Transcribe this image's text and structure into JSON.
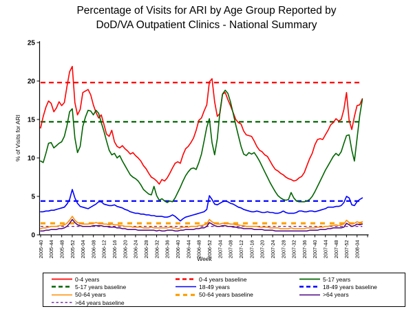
{
  "title": {
    "line1": "Percentage of Visits for ARI by Age Group Reported by",
    "line2": "DoD/VA Outpatient Clinics - National Summary"
  },
  "axes": {
    "y_title": "% of Visits for ARI",
    "x_title": "Week",
    "y_ticks": [
      0,
      5,
      10,
      15,
      20,
      25
    ]
  },
  "legend": {
    "items": [
      {
        "label": "0-4 years",
        "color": "#ff0000",
        "width": 1.8,
        "dash": ""
      },
      {
        "label": "0-4 years baseline",
        "color": "#ff0000",
        "width": 2.4,
        "dash": "6 4"
      },
      {
        "label": "5-17 years",
        "color": "#006400",
        "width": 1.8,
        "dash": ""
      },
      {
        "label": "5-17 years baseline",
        "color": "#006400",
        "width": 2.4,
        "dash": "6 4"
      },
      {
        "label": "18-49 years",
        "color": "#0000ff",
        "width": 1.6,
        "dash": ""
      },
      {
        "label": "18-49 years baseline",
        "color": "#0000ff",
        "width": 2.4,
        "dash": "6 4"
      },
      {
        "label": "50-64 years",
        "color": "#ff8c00",
        "width": 1.6,
        "dash": ""
      },
      {
        "label": "50-64 years baseline",
        "color": "#ffa000",
        "width": 3.2,
        "dash": "6 5"
      },
      {
        "label": ">64 years",
        "color": "#4b0082",
        "width": 1.5,
        "dash": ""
      },
      {
        "label": ">64 years baseline",
        "color": "#7030a0",
        "width": 1.4,
        "dash": "3.5 3"
      }
    ]
  },
  "chart_data": {
    "type": "line",
    "title": "Percentage of Visits for ARI by Age Group Reported by DoD/VA Outpatient Clinics - National Summary",
    "xlabel": "Week",
    "ylabel": "% of Visits for ARI",
    "ylim": [
      0,
      25
    ],
    "x_start": "2005-40",
    "x_end": "2008-06",
    "x_step": "1 week",
    "x_tick_labels": [
      "2005-40",
      "2005-44",
      "2005-48",
      "2005-52",
      "2006-04",
      "2006-08",
      "2006-12",
      "2006-16",
      "2006-20",
      "2006-24",
      "2006-28",
      "2006-32",
      "2006-36",
      "2006-40",
      "2006-44",
      "2006-48",
      "2006-52",
      "2007-04",
      "2007-08",
      "2007-12",
      "2007-16",
      "2007-20",
      "2007-24",
      "2007-28",
      "2007-32",
      "2007-36",
      "2007-40",
      "2007-44",
      "2007-48",
      "2007-52",
      "2008-04"
    ],
    "grid": false,
    "legend_position": "bottom",
    "series": [
      {
        "name": "0-4 years",
        "color": "#ff0000",
        "width": 1.6,
        "values": [
          13.9,
          15.4,
          16.6,
          17.4,
          17.1,
          16.0,
          16.5,
          17.3,
          16.8,
          17.2,
          19.3,
          21.2,
          21.9,
          17.2,
          15.6,
          16.3,
          18.5,
          18.7,
          18.9,
          18.2,
          16.9,
          15.9,
          15.2,
          15.6,
          14.4,
          13.1,
          12.8,
          13.6,
          12.1,
          11.5,
          11.3,
          11.6,
          11.2,
          10.9,
          10.5,
          10.7,
          10.3,
          10.0,
          9.6,
          9.0,
          8.6,
          8.0,
          7.5,
          7.3,
          7.0,
          6.6,
          7.2,
          7.0,
          7.4,
          8.0,
          8.7,
          9.3,
          9.5,
          9.3,
          10.4,
          11.2,
          11.5,
          12.0,
          12.6,
          13.6,
          14.9,
          15.2,
          16.1,
          16.9,
          19.9,
          20.3,
          17.3,
          15.4,
          15.8,
          18.3,
          18.5,
          17.6,
          16.8,
          15.9,
          15.0,
          14.6,
          14.4,
          13.5,
          13.0,
          12.9,
          12.8,
          12.2,
          11.5,
          11.0,
          10.8,
          10.4,
          10.2,
          9.6,
          9.0,
          8.5,
          8.3,
          8.0,
          7.8,
          7.5,
          7.3,
          7.2,
          7.0,
          7.1,
          7.4,
          7.6,
          8.1,
          9.0,
          9.9,
          10.6,
          11.7,
          12.4,
          12.5,
          12.4,
          13.0,
          13.6,
          14.3,
          14.6,
          15.1,
          14.8,
          15.0,
          16.3,
          18.5,
          14.9,
          13.7,
          15.4,
          16.8,
          16.9,
          17.7
        ]
      },
      {
        "name": "5-17 years",
        "color": "#006400",
        "width": 1.6,
        "values": [
          9.6,
          9.4,
          10.6,
          11.9,
          12.0,
          11.3,
          11.6,
          11.9,
          12.1,
          12.8,
          14.2,
          16.0,
          16.4,
          12.6,
          10.7,
          11.5,
          14.1,
          15.3,
          16.2,
          16.1,
          15.6,
          16.2,
          15.8,
          14.6,
          13.5,
          12.2,
          11.0,
          10.4,
          10.6,
          10.0,
          10.3,
          9.6,
          9.0,
          8.4,
          7.8,
          7.5,
          7.3,
          7.0,
          6.5,
          5.9,
          5.6,
          5.3,
          5.2,
          6.3,
          5.1,
          4.5,
          4.7,
          4.4,
          4.2,
          4.4,
          4.3,
          4.8,
          5.5,
          6.2,
          7.0,
          7.7,
          8.2,
          8.6,
          8.7,
          8.5,
          9.4,
          10.5,
          12.2,
          14.0,
          15.1,
          12.0,
          10.4,
          12.5,
          16.0,
          18.3,
          18.8,
          18.4,
          17.3,
          15.8,
          14.3,
          12.9,
          11.5,
          10.5,
          10.3,
          10.7,
          10.5,
          10.7,
          10.2,
          9.6,
          8.9,
          8.2,
          7.5,
          6.8,
          6.2,
          5.6,
          5.1,
          4.8,
          4.6,
          4.5,
          4.6,
          5.5,
          4.8,
          4.4,
          4.3,
          4.3,
          4.3,
          4.4,
          4.6,
          5.0,
          5.6,
          6.3,
          7.0,
          7.7,
          8.4,
          9.0,
          9.6,
          10.2,
          10.6,
          10.3,
          10.8,
          11.9,
          12.9,
          13.0,
          11.0,
          9.6,
          12.5,
          15.5,
          17.6
        ]
      },
      {
        "name": "18-49 years",
        "color": "#0000ff",
        "width": 1.6,
        "values": [
          3.0,
          3.0,
          3.1,
          3.1,
          3.2,
          3.2,
          3.3,
          3.4,
          3.5,
          3.6,
          4.0,
          4.6,
          5.9,
          4.8,
          4.1,
          3.7,
          3.6,
          3.5,
          3.4,
          3.6,
          3.8,
          4.0,
          4.3,
          4.3,
          4.0,
          3.9,
          3.8,
          3.8,
          3.9,
          3.7,
          3.6,
          3.5,
          3.3,
          3.2,
          3.0,
          2.9,
          2.8,
          2.8,
          2.7,
          2.7,
          2.6,
          2.6,
          2.5,
          2.5,
          2.4,
          2.4,
          2.4,
          2.3,
          2.3,
          2.4,
          2.6,
          2.4,
          2.1,
          1.8,
          2.1,
          2.3,
          2.4,
          2.5,
          2.6,
          2.7,
          2.8,
          2.9,
          3.0,
          3.3,
          5.1,
          4.6,
          4.0,
          3.9,
          4.1,
          4.3,
          4.4,
          4.3,
          4.1,
          4.0,
          3.8,
          3.6,
          3.5,
          3.3,
          3.2,
          3.1,
          3.0,
          3.0,
          3.1,
          3.0,
          2.9,
          2.9,
          3.0,
          2.9,
          2.9,
          2.8,
          2.8,
          2.9,
          3.1,
          2.9,
          2.8,
          2.8,
          2.8,
          2.9,
          3.1,
          3.1,
          3.0,
          3.0,
          3.1,
          3.1,
          3.0,
          3.1,
          3.2,
          3.3,
          3.4,
          3.6,
          3.6,
          3.6,
          3.7,
          3.7,
          3.8,
          4.2,
          5.0,
          4.8,
          3.9,
          3.8,
          4.3,
          4.6,
          4.8
        ]
      },
      {
        "name": "50-64 years",
        "color": "#ff8c00",
        "width": 1.6,
        "values": [
          0.8,
          0.9,
          0.9,
          1.0,
          1.1,
          1.1,
          1.1,
          1.2,
          1.2,
          1.3,
          1.5,
          1.9,
          2.4,
          1.9,
          1.6,
          1.5,
          1.4,
          1.4,
          1.4,
          1.5,
          1.5,
          1.6,
          1.5,
          1.5,
          1.4,
          1.4,
          1.3,
          1.4,
          1.3,
          1.3,
          1.2,
          1.2,
          1.1,
          1.1,
          1.1,
          1.0,
          1.0,
          1.0,
          1.0,
          0.9,
          0.9,
          0.9,
          1.0,
          0.9,
          0.9,
          0.9,
          0.9,
          0.9,
          0.9,
          1.0,
          0.9,
          0.9,
          0.8,
          0.9,
          1.0,
          1.0,
          1.0,
          1.1,
          1.1,
          1.1,
          1.2,
          1.2,
          1.3,
          1.4,
          2.0,
          1.7,
          1.5,
          1.4,
          1.4,
          1.5,
          1.5,
          1.5,
          1.4,
          1.4,
          1.3,
          1.3,
          1.2,
          1.2,
          1.1,
          1.1,
          1.1,
          1.1,
          1.1,
          1.0,
          1.0,
          1.0,
          1.0,
          0.9,
          0.9,
          0.9,
          0.9,
          0.8,
          0.8,
          0.8,
          0.8,
          0.9,
          0.8,
          0.8,
          0.8,
          0.8,
          0.8,
          0.9,
          0.9,
          0.9,
          0.9,
          1.0,
          1.0,
          1.0,
          1.1,
          1.1,
          1.2,
          1.2,
          1.3,
          1.2,
          1.3,
          1.4,
          1.9,
          1.6,
          1.4,
          1.5,
          1.7,
          1.6,
          1.7
        ]
      },
      {
        "name": ">64 years",
        "color": "#4b0082",
        "width": 1.5,
        "values": [
          0.5,
          0.5,
          0.6,
          0.6,
          0.7,
          0.7,
          0.7,
          0.8,
          0.8,
          0.9,
          1.1,
          1.5,
          2.0,
          1.6,
          1.3,
          1.2,
          1.1,
          1.1,
          1.1,
          1.1,
          1.2,
          1.2,
          1.2,
          1.2,
          1.1,
          1.1,
          1.0,
          1.0,
          1.0,
          0.9,
          0.9,
          0.8,
          0.8,
          0.7,
          0.7,
          0.7,
          0.7,
          0.6,
          0.6,
          0.6,
          0.6,
          0.6,
          0.6,
          0.6,
          0.5,
          0.6,
          0.5,
          0.5,
          0.6,
          0.6,
          0.6,
          0.5,
          0.5,
          0.6,
          0.6,
          0.7,
          0.7,
          0.7,
          0.7,
          0.8,
          0.8,
          0.9,
          0.9,
          1.1,
          1.6,
          1.4,
          1.2,
          1.1,
          1.1,
          1.2,
          1.2,
          1.1,
          1.1,
          1.0,
          1.0,
          0.9,
          0.9,
          0.8,
          0.8,
          0.8,
          0.8,
          0.7,
          0.7,
          0.7,
          0.7,
          0.6,
          0.6,
          0.6,
          0.6,
          0.5,
          0.5,
          0.5,
          0.5,
          0.5,
          0.5,
          0.5,
          0.5,
          0.5,
          0.5,
          0.5,
          0.5,
          0.5,
          0.6,
          0.6,
          0.6,
          0.6,
          0.7,
          0.7,
          0.7,
          0.8,
          0.8,
          0.9,
          0.9,
          0.9,
          0.9,
          1.0,
          1.5,
          1.3,
          1.1,
          1.2,
          1.4,
          1.3,
          1.4
        ]
      }
    ],
    "baselines": [
      {
        "name": "0-4 years baseline",
        "color": "#ff0000",
        "value": 19.8,
        "width": 2.2,
        "dash": "7 5"
      },
      {
        "name": "5-17 years baseline",
        "color": "#006400",
        "value": 14.7,
        "width": 2.2,
        "dash": "7 5"
      },
      {
        "name": "18-49 years baseline",
        "color": "#0000ff",
        "value": 4.4,
        "width": 2.2,
        "dash": "7 5"
      },
      {
        "name": "50-64 years baseline",
        "color": "#ffa000",
        "value": 1.5,
        "width": 3.2,
        "dash": "7 7"
      },
      {
        "name": ">64 years baseline",
        "color": "#7030a0",
        "value": 1.1,
        "width": 1.4,
        "dash": "4 3.5"
      }
    ]
  }
}
